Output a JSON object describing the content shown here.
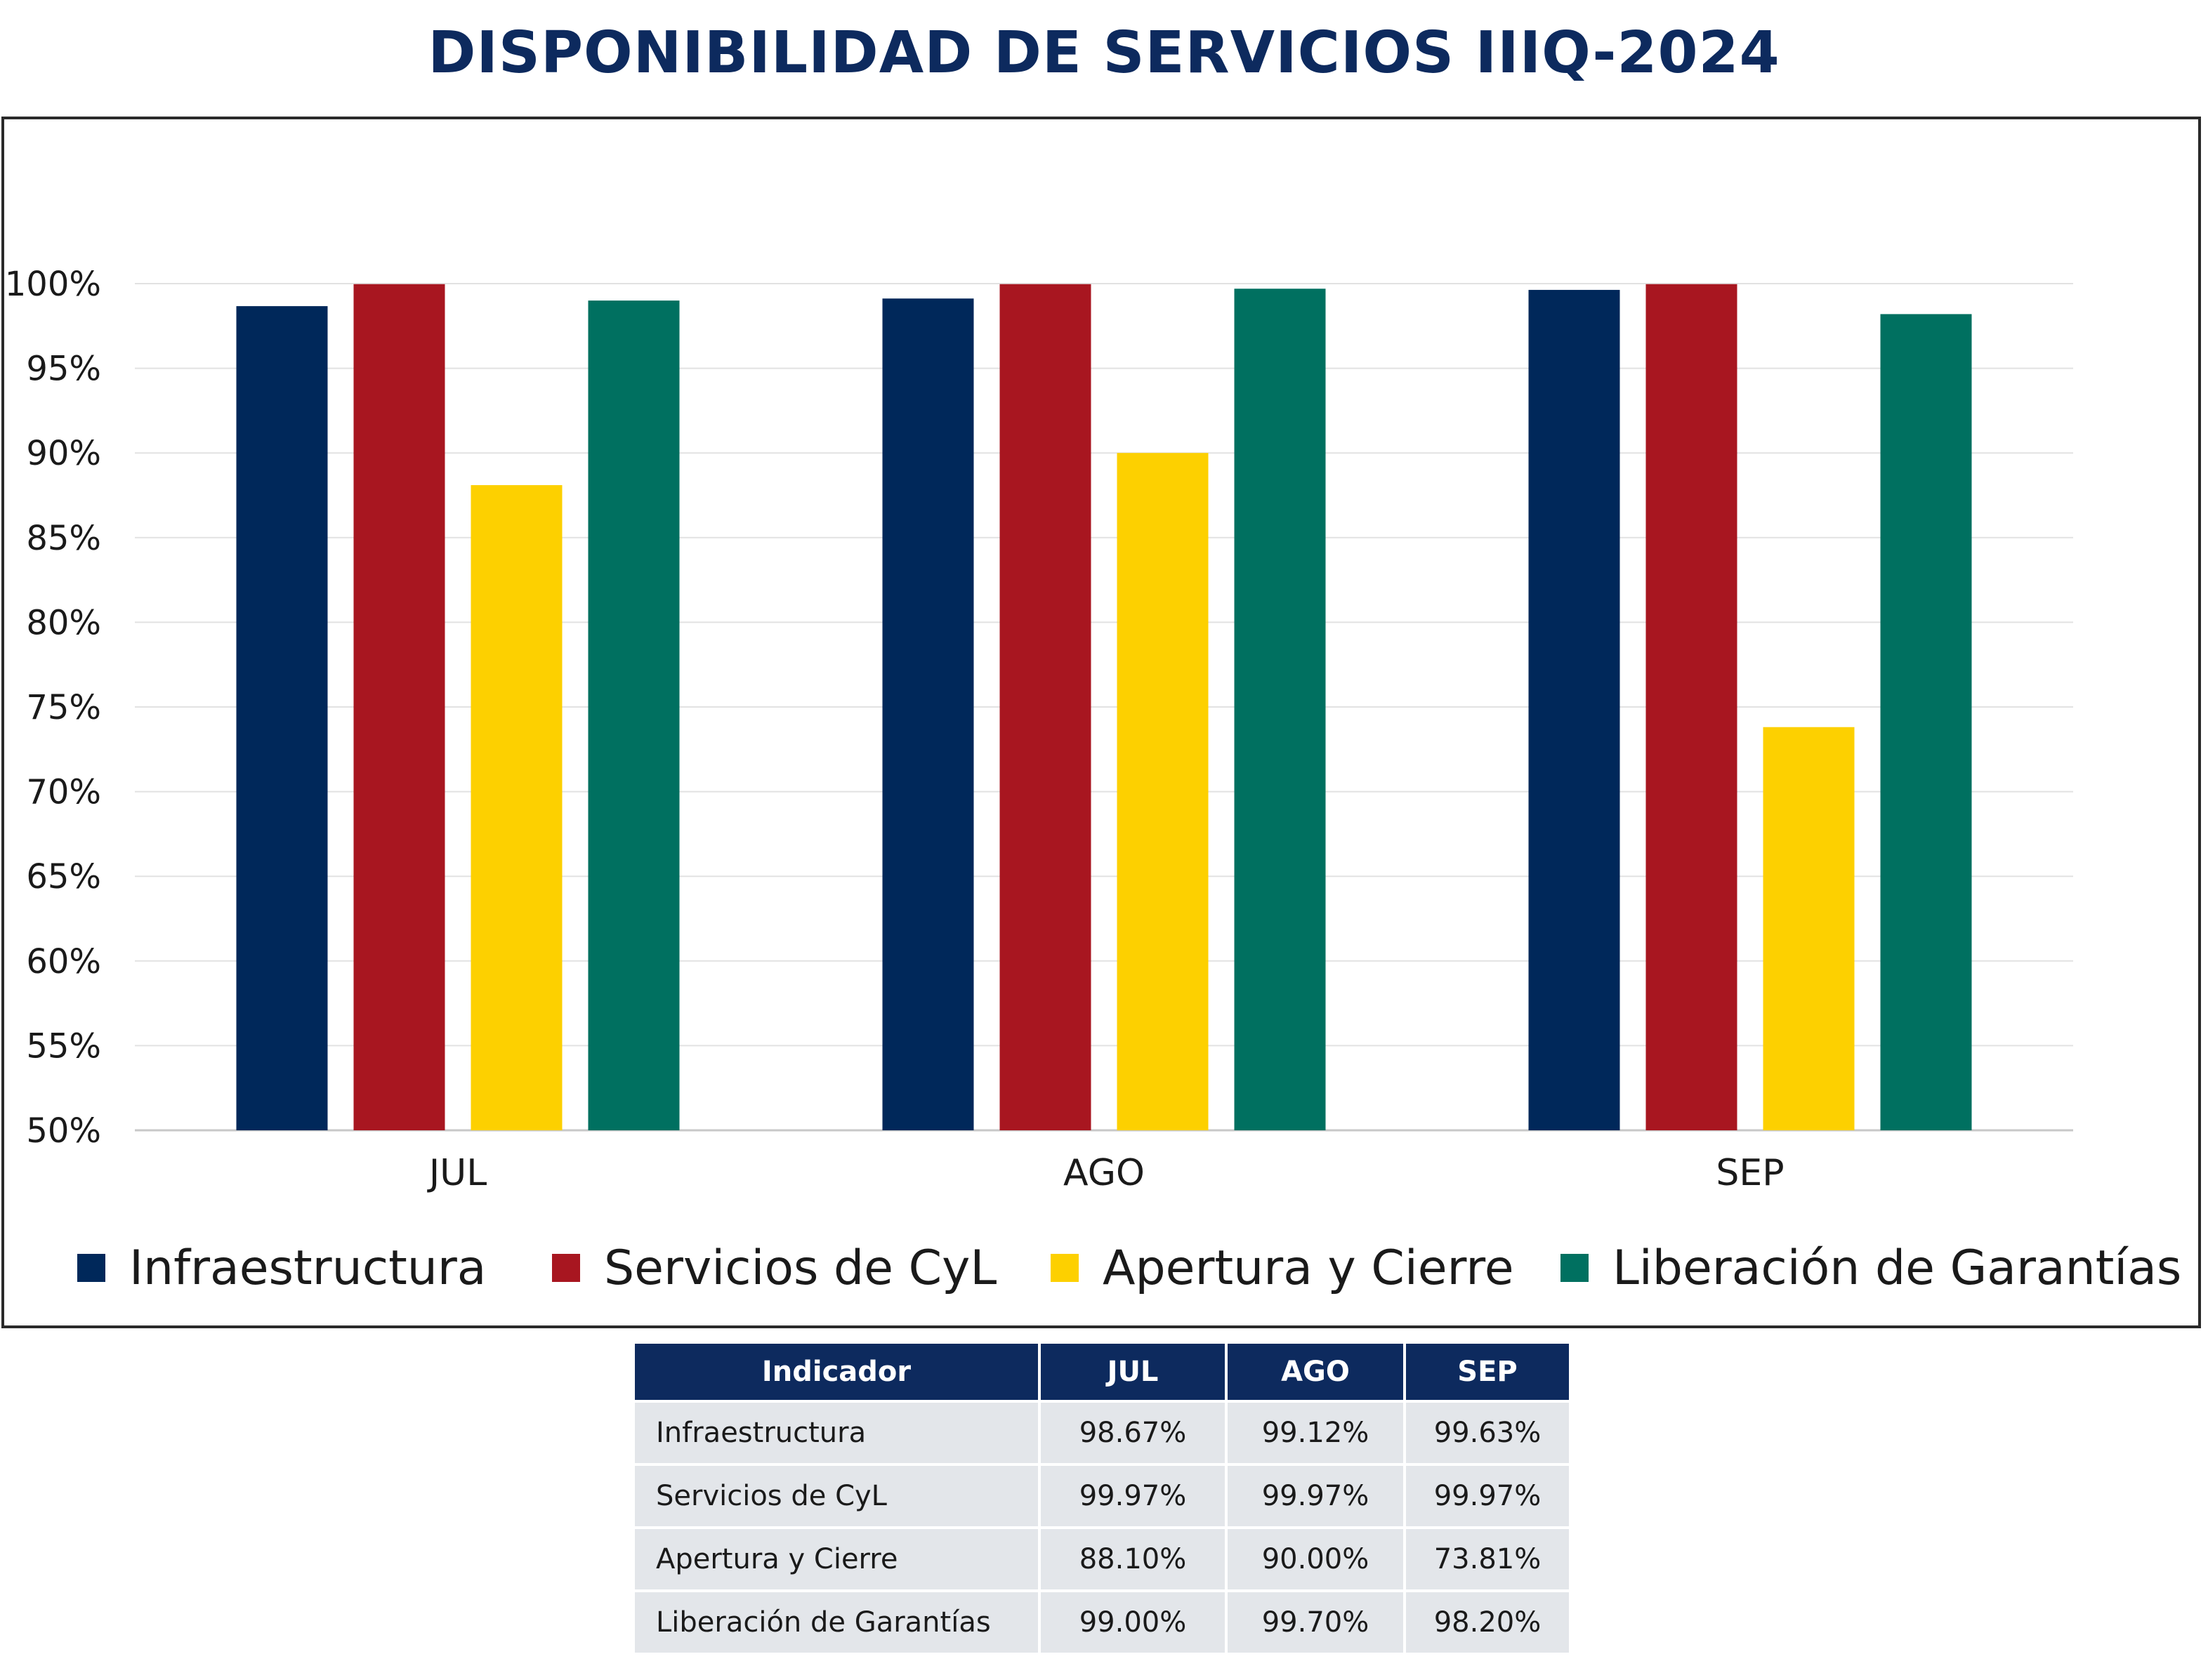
{
  "title": "DISPONIBILIDAD DE SERVICIOS IIIQ-2024",
  "chart_data": {
    "type": "bar",
    "categories": [
      "JUL",
      "AGO",
      "SEP"
    ],
    "series": [
      {
        "name": "Infraestructura",
        "color": "#00285a",
        "values": [
          98.67,
          99.12,
          99.63
        ]
      },
      {
        "name": "Servicios de CyL",
        "color": "#a81620",
        "values": [
          99.97,
          99.97,
          99.97
        ]
      },
      {
        "name": "Apertura y Cierre",
        "color": "#fdd000",
        "values": [
          88.1,
          90.0,
          73.81
        ]
      },
      {
        "name": "Liberación de Garantías",
        "color": "#007060",
        "values": [
          99.0,
          99.7,
          98.2
        ]
      }
    ],
    "ylim": [
      50,
      100
    ],
    "yticks": [
      "50%",
      "55%",
      "60%",
      "65%",
      "70%",
      "75%",
      "80%",
      "85%",
      "90%",
      "95%",
      "100%"
    ],
    "grid": true,
    "legend_position": "bottom"
  },
  "table": {
    "headers": [
      "Indicador",
      "JUL",
      "AGO",
      "SEP"
    ],
    "rows": [
      [
        "Infraestructura",
        "98.67%",
        "99.12%",
        "99.63%"
      ],
      [
        "Servicios de CyL",
        "99.97%",
        "99.97%",
        "99.97%"
      ],
      [
        "Apertura y Cierre",
        "88.10%",
        "90.00%",
        "73.81%"
      ],
      [
        "Liberación de Garantías",
        "99.00%",
        "99.70%",
        "98.20%"
      ]
    ]
  }
}
